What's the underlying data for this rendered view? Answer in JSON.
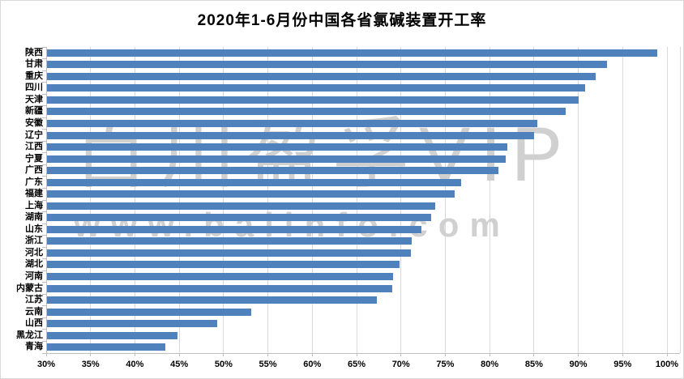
{
  "chart": {
    "title": "2020年1-6月份中国各省氯碱装置开工率"
  },
  "watermark": {
    "line1": "百川盈孚VIP",
    "line2": "www.baiinfo.com"
  },
  "chart_data": {
    "type": "bar",
    "orientation": "horizontal",
    "title": "2020年1-6月份中国各省氯碱装置开工率",
    "xlabel": "",
    "ylabel": "",
    "unit": "%",
    "xlim": [
      30,
      100
    ],
    "x_tick_step": 5,
    "x_ticks": [
      "30%",
      "35%",
      "40%",
      "45%",
      "50%",
      "55%",
      "60%",
      "65%",
      "70%",
      "75%",
      "80%",
      "85%",
      "90%",
      "95%",
      "100%"
    ],
    "grid": true,
    "legend": false,
    "bar_color": "#4f81bd",
    "gridline_color": "#d9d9d9",
    "axis_color": "#bfbfbf",
    "categories": [
      "陕西",
      "甘肃",
      "重庆",
      "四川",
      "天津",
      "新疆",
      "安徽",
      "辽宁",
      "江西",
      "宁夏",
      "广西",
      "广东",
      "福建",
      "上海",
      "湖南",
      "山东",
      "浙江",
      "河北",
      "湖北",
      "河南",
      "内蒙古",
      "江苏",
      "云南",
      "山西",
      "黑龙江",
      "青海"
    ],
    "values": [
      98.9,
      93.2,
      92.0,
      90.8,
      90.0,
      88.6,
      85.4,
      85.0,
      82.0,
      81.8,
      81.0,
      76.8,
      76.1,
      73.9,
      73.4,
      72.3,
      71.2,
      71.1,
      69.8,
      69.1,
      69.0,
      67.3,
      53.1,
      49.3,
      44.8,
      43.4
    ]
  }
}
